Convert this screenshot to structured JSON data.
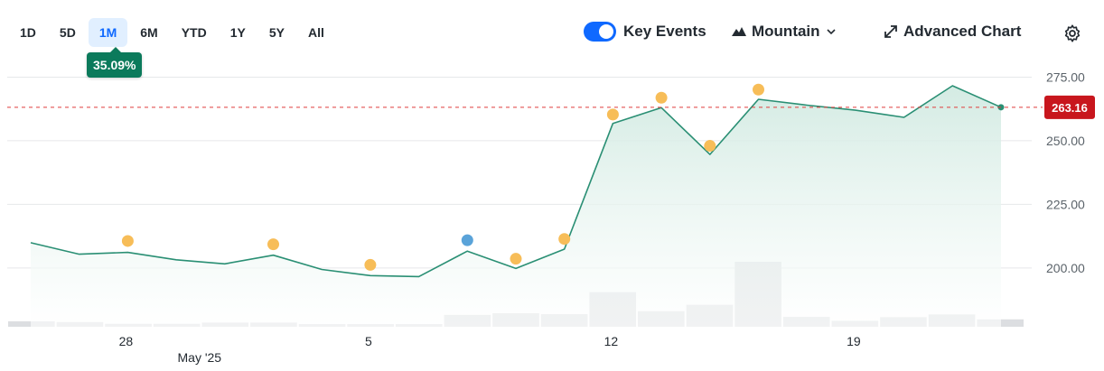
{
  "toolbar": {
    "ranges": [
      "1D",
      "5D",
      "1M",
      "6M",
      "YTD",
      "1Y",
      "5Y",
      "All"
    ],
    "active_range": "1M",
    "change_pct": "35.09%",
    "key_events_label": "Key Events",
    "key_events_on": true,
    "chart_type_label": "Mountain",
    "advanced_chart_label": "Advanced Chart"
  },
  "colors": {
    "line": "#2a8f74",
    "area_top": "#cfe9e0",
    "area_bottom": "#ffffff",
    "current_line": "#e03c3c",
    "badge": "#c8161d",
    "event_dot": "#f7bd58",
    "event_dot_blue": "#5aa3d9",
    "volume": "#dcdee1",
    "grid": "#e6e8ea",
    "accent": "#0f69ff",
    "change_pill": "#0b7a5b"
  },
  "chart_data": {
    "type": "area",
    "current_price": 263.16,
    "current_price_label": "263.16",
    "ylim": [
      190,
      278
    ],
    "yticks": [
      200,
      225,
      250,
      275
    ],
    "ytick_labels": [
      "200.00",
      "225.00",
      "250.00",
      "275.00"
    ],
    "xtick_labels": [
      "28",
      "5",
      "12",
      "19"
    ],
    "xtick_index": [
      2,
      7,
      12,
      17
    ],
    "month_label": "May '25",
    "month_label_index": 4,
    "x_count": 21,
    "series": [
      {
        "values": [
          209.9,
          205.4,
          206.1,
          203.2,
          201.6,
          205.0,
          199.4,
          197.0,
          196.6,
          206.6,
          199.8,
          207.4,
          256.8,
          263.0,
          244.6,
          266.3,
          264.0,
          262.0,
          259.2,
          271.6,
          263.16
        ]
      }
    ],
    "key_events": [
      {
        "index": 2,
        "value": 210.6,
        "kind": "orange"
      },
      {
        "index": 5,
        "value": 209.3,
        "kind": "orange"
      },
      {
        "index": 7,
        "value": 201.2,
        "kind": "orange"
      },
      {
        "index": 9,
        "value": 210.9,
        "kind": "blue"
      },
      {
        "index": 10,
        "value": 203.6,
        "kind": "orange"
      },
      {
        "index": 11,
        "value": 211.4,
        "kind": "orange"
      },
      {
        "index": 12,
        "value": 260.3,
        "kind": "orange"
      },
      {
        "index": 13,
        "value": 266.9,
        "kind": "orange"
      },
      {
        "index": 14,
        "value": 248.0,
        "kind": "orange"
      },
      {
        "index": 15,
        "value": 270.1,
        "kind": "orange"
      }
    ],
    "volume": [
      0.22,
      0.19,
      0.12,
      0.12,
      0.17,
      0.17,
      0.11,
      0.11,
      0.11,
      0.48,
      0.55,
      0.51,
      1.4,
      0.63,
      0.89,
      2.63,
      0.4,
      0.24,
      0.39,
      0.5,
      0.3
    ],
    "volume_bar_count": 21
  }
}
